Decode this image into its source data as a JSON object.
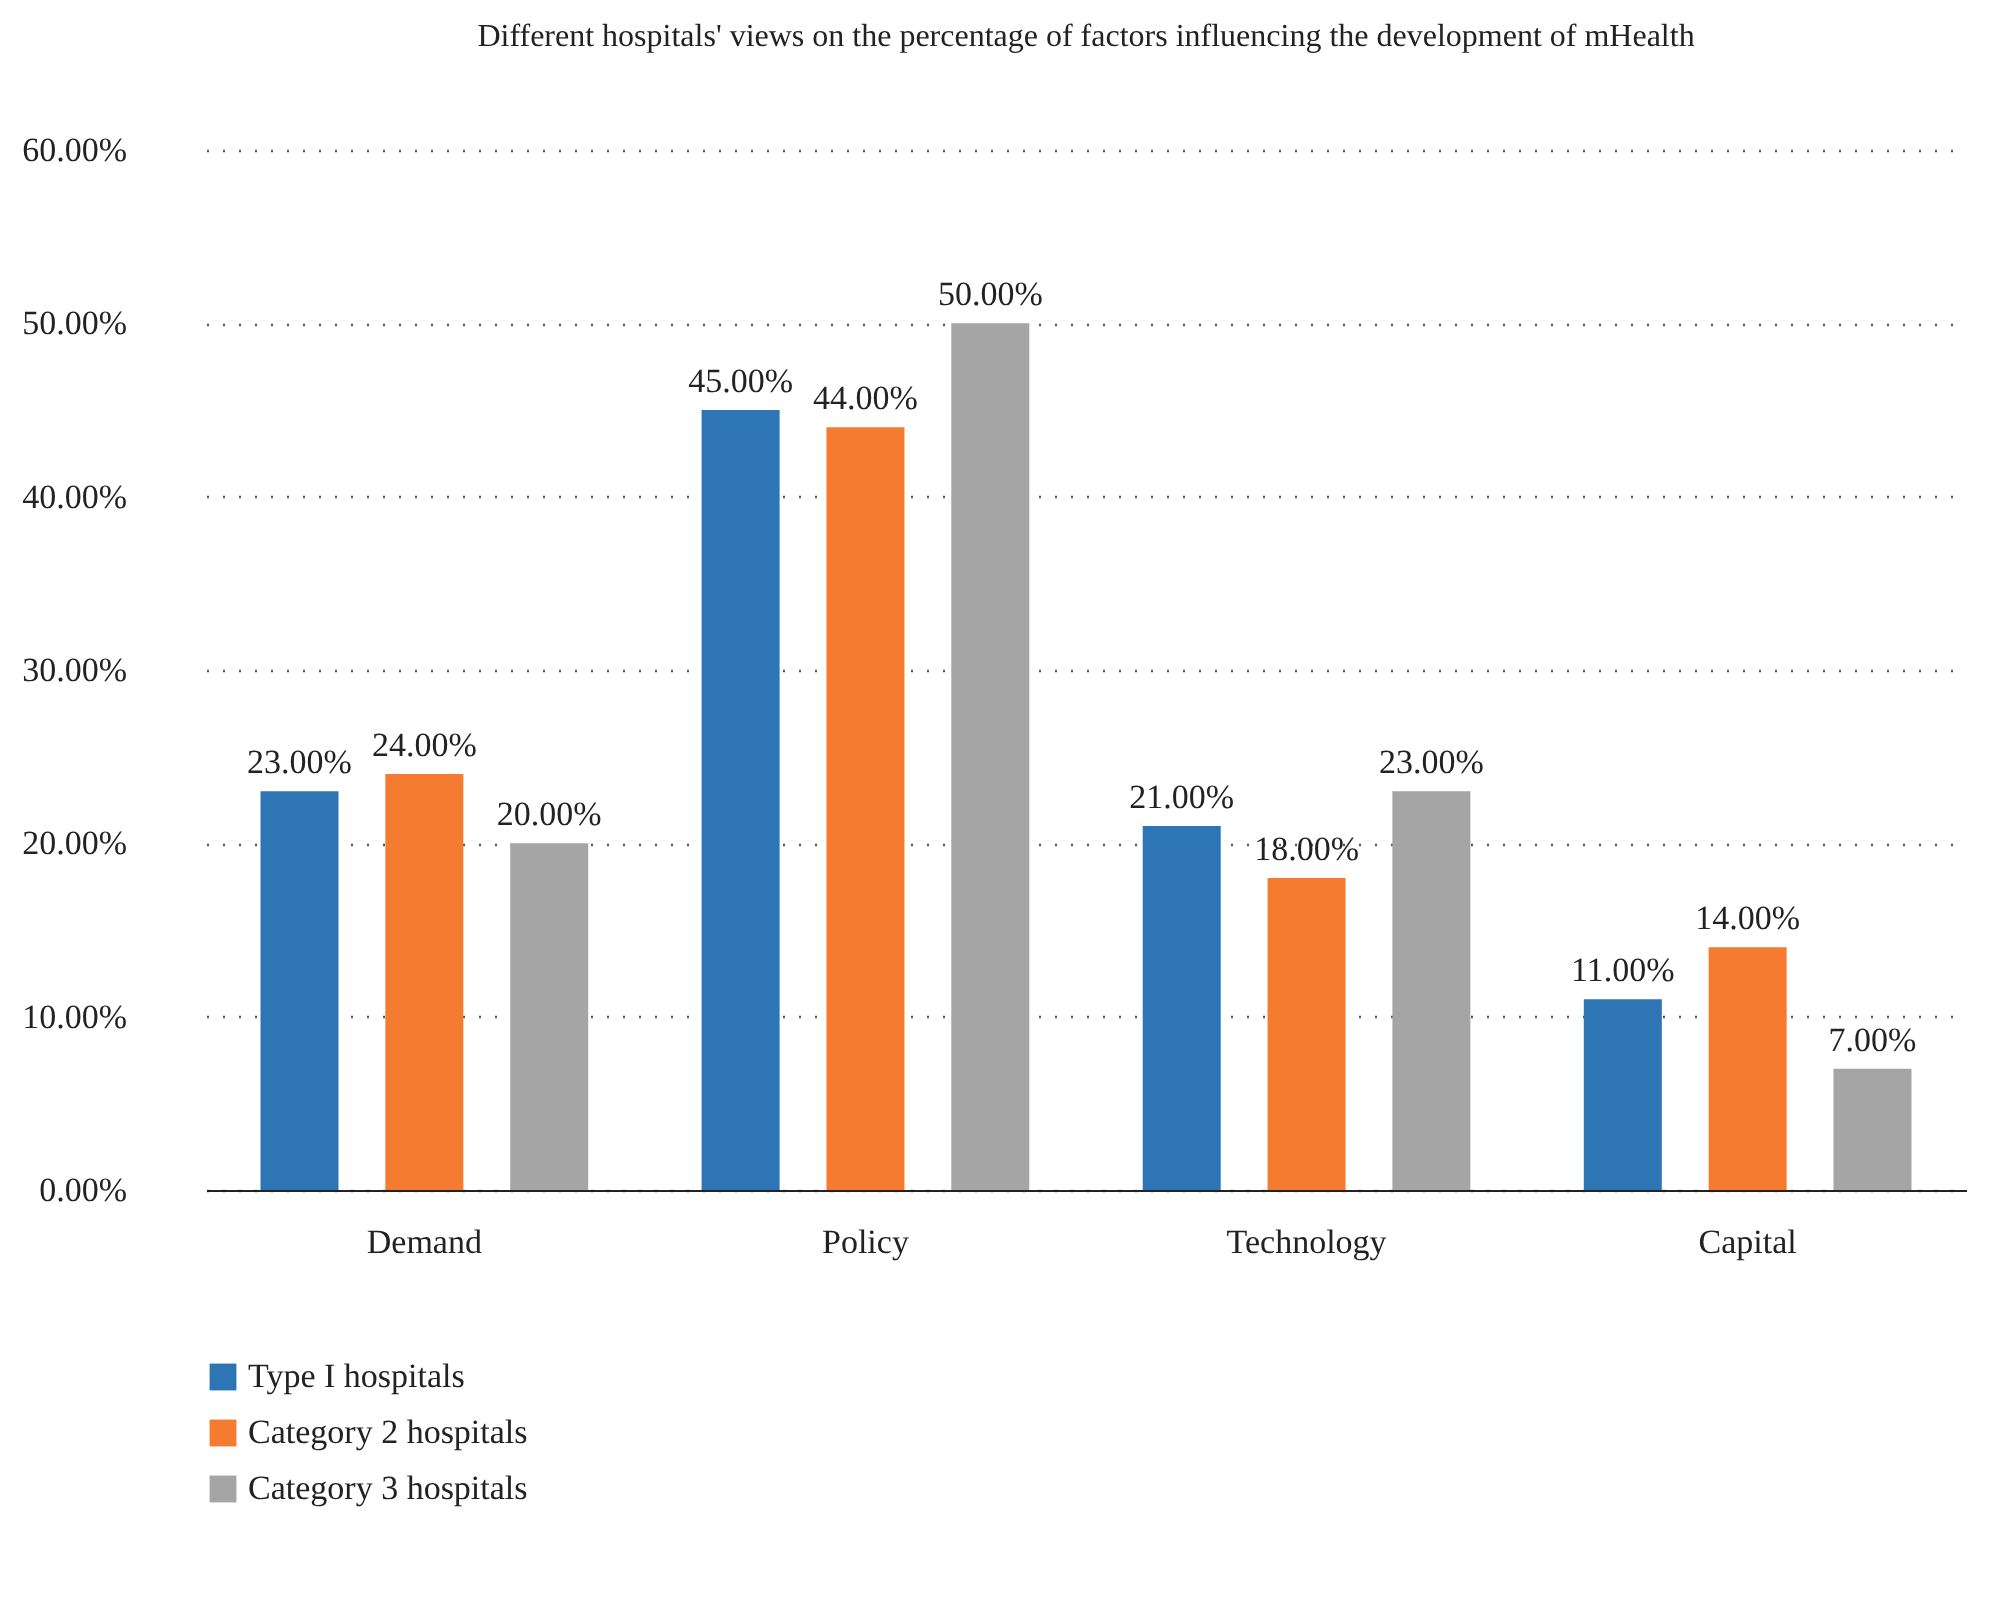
{
  "chart_data": {
    "type": "bar",
    "title": "Different hospitals' views on the percentage of\nfactors influencing the development of mHealth",
    "categories": [
      "Demand",
      "Policy",
      "Technology",
      "Capital"
    ],
    "series": [
      {
        "name": "Type I hospitals",
        "color": "#2e75b6",
        "values": [
          23,
          45,
          21,
          11
        ],
        "value_labels": [
          "23.00%",
          "45.00%",
          "21.00%",
          "11.00%"
        ]
      },
      {
        "name": "Category 2 hospitals",
        "color": "#f47b30",
        "values": [
          24,
          44,
          18,
          14
        ],
        "value_labels": [
          "24.00%",
          "44.00%",
          "18.00%",
          "14.00%"
        ]
      },
      {
        "name": "Category 3 hospitals",
        "color": "#a5a5a5",
        "values": [
          20,
          50,
          23,
          7
        ],
        "value_labels": [
          "20.00%",
          "50.00%",
          "23.00%",
          "7.00%"
        ]
      }
    ],
    "ylim": [
      0,
      60
    ],
    "yticks": [
      {
        "value": 0,
        "label": "0.00%"
      },
      {
        "value": 10,
        "label": "10.00%"
      },
      {
        "value": 20,
        "label": "20.00%"
      },
      {
        "value": 30,
        "label": "30.00%"
      },
      {
        "value": 40,
        "label": "40.00%"
      },
      {
        "value": 50,
        "label": "50.00%"
      },
      {
        "value": 60,
        "label": "60.00%"
      }
    ],
    "grid": "y",
    "legend": "bottom left"
  }
}
